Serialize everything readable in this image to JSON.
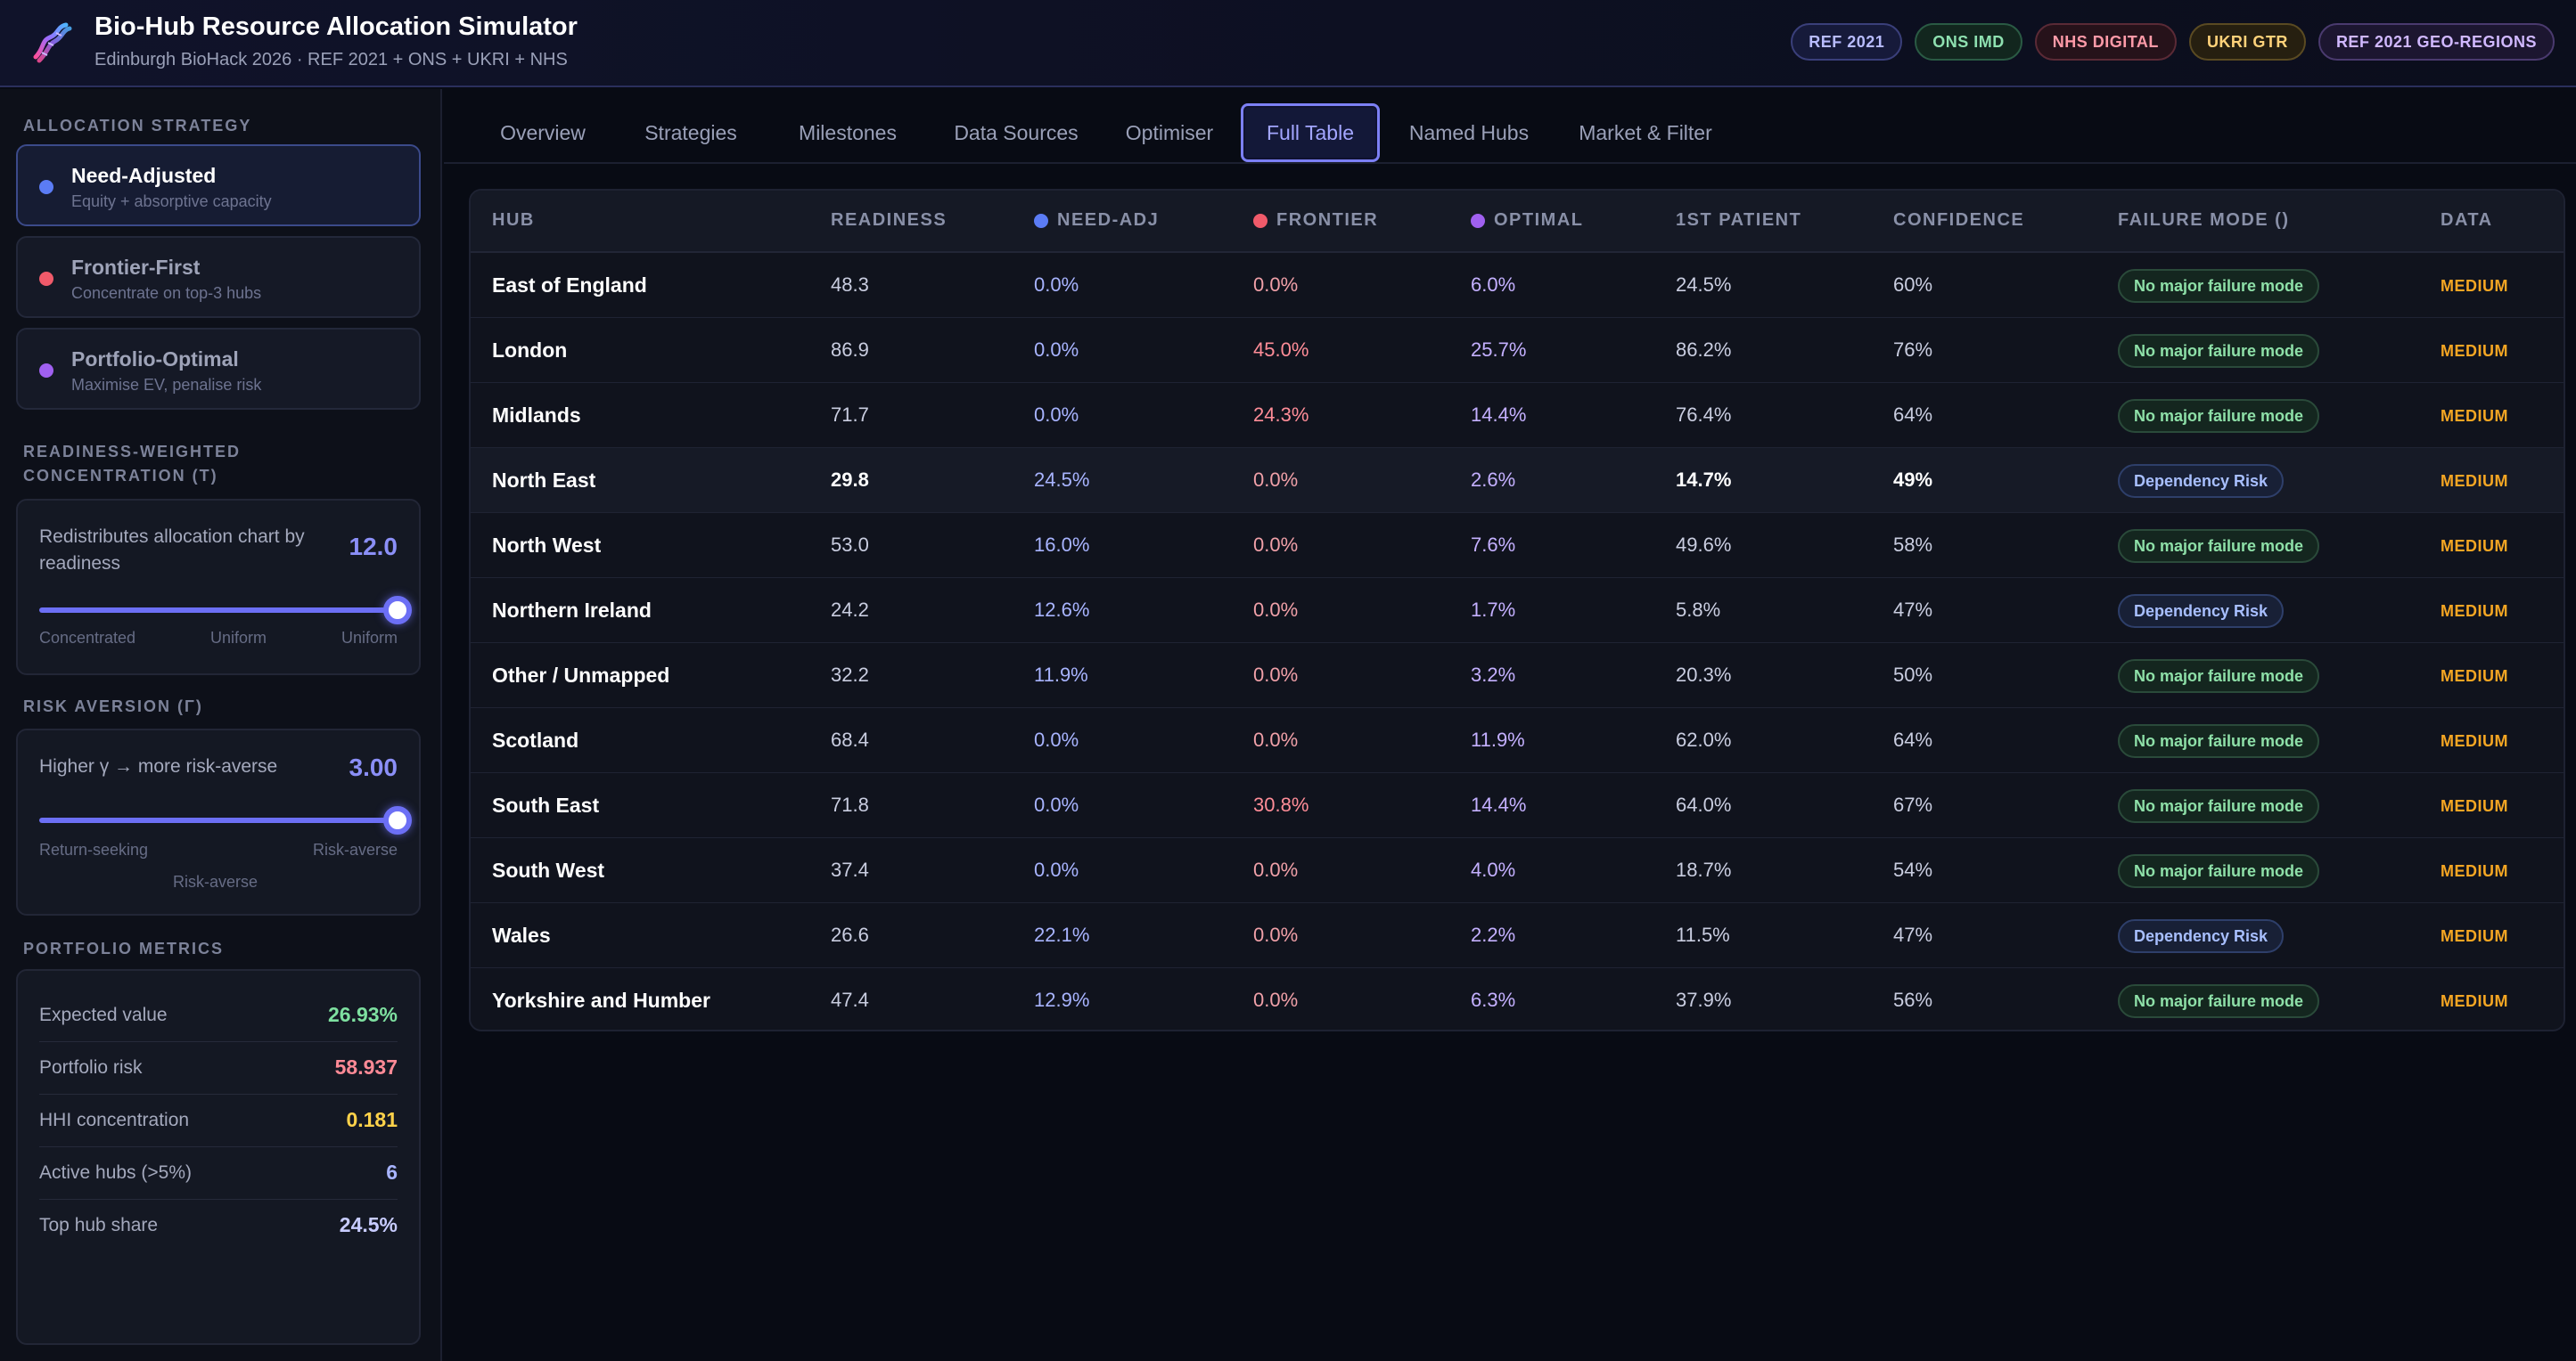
{
  "app": {
    "title": "Bio-Hub Resource Allocation Simulator",
    "subtitle": "Edinburgh BioHack 2026  ·  REF 2021 + ONS + UKRI + NHS",
    "logo_icon": "dna-helix-icon"
  },
  "badges": [
    {
      "label": "REF 2021",
      "color": "#b8bcff",
      "border": "#3a3f7a",
      "bg": "#161a3a"
    },
    {
      "label": "ONS IMD",
      "color": "#8ee0b0",
      "border": "#2a5a44",
      "bg": "#12261e"
    },
    {
      "label": "NHS DIGITAL",
      "color": "#ff9aa8",
      "border": "#5a2a36",
      "bg": "#26121a"
    },
    {
      "label": "UKRI GTR",
      "color": "#ffd27a",
      "border": "#5a4a22",
      "bg": "#261f10"
    },
    {
      "label": "REF 2021 GEO-REGIONS",
      "color": "#d0b8ff",
      "border": "#4a3a6e",
      "bg": "#1c1630"
    }
  ],
  "sidebar": {
    "strategy_label": "ALLOCATION STRATEGY",
    "strategies": [
      {
        "name": "Need-Adjusted",
        "desc": "Equity + absorptive capacity",
        "color": "#5b7cf5",
        "active": true
      },
      {
        "name": "Frontier-First",
        "desc": "Concentrate on top-3 hubs",
        "color": "#f05a6a",
        "active": false
      },
      {
        "name": "Portfolio-Optimal",
        "desc": "Maximise EV, penalise risk",
        "color": "#a060f0",
        "active": false
      }
    ],
    "tau": {
      "label": "READINESS-WEIGHTED CONCENTRATION (Τ)",
      "description": "Redistributes allocation chart by readiness",
      "value": "12.0",
      "level": 1.0,
      "ticks": [
        "Concentrated",
        "Uniform",
        "Uniform"
      ]
    },
    "gamma": {
      "label": "RISK AVERSION (Γ)",
      "description": "Higher γ → more risk-averse",
      "value": "3.00",
      "level": 1.0,
      "ticks": [
        "Return-seeking",
        "Risk-averse",
        "Risk-averse"
      ]
    },
    "metrics_label": "PORTFOLIO METRICS",
    "metrics": [
      {
        "label": "Expected value",
        "value": "26.93%",
        "color": "#7ee0a0"
      },
      {
        "label": "Portfolio risk",
        "value": "58.937",
        "color": "#ff8a96"
      },
      {
        "label": "HHI concentration",
        "value": "0.181",
        "color": "#ffd24a"
      },
      {
        "label": "Active hubs (>5%)",
        "value": "6",
        "color": "#a8b4ff"
      },
      {
        "label": "Top hub share",
        "value": "24.5%",
        "color": "#c8ccff"
      }
    ]
  },
  "tabs": [
    {
      "label": "Overview",
      "active": false
    },
    {
      "label": "Strategies",
      "active": false
    },
    {
      "label": "Milestones",
      "active": false
    },
    {
      "label": "Data Sources",
      "active": false
    },
    {
      "label": "Optimiser",
      "active": false
    },
    {
      "label": "Full Table",
      "active": true
    },
    {
      "label": "Named Hubs",
      "active": false
    },
    {
      "label": "Market & Filter",
      "active": false
    }
  ],
  "table": {
    "columns": {
      "hub": "HUB",
      "readiness": "READINESS",
      "need": "NEED-ADJ",
      "frontier": "FRONTIER",
      "optimal": "OPTIMAL",
      "first_patient": "1ST PATIENT",
      "confidence": "CONFIDENCE",
      "failure": "FAILURE MODE ()",
      "data": "DATA"
    },
    "column_colors": {
      "need": "#5b7cf5",
      "frontier": "#f05a6a",
      "optimal": "#a060f0"
    },
    "rows": [
      {
        "hub": "East of England",
        "readiness": "48.3",
        "need": "0.0%",
        "frontier": "0.0%",
        "optimal": "6.0%",
        "first_patient": "24.5%",
        "confidence": "60%",
        "failure": "No major failure mode",
        "failure_type": "ok",
        "data": "MEDIUM"
      },
      {
        "hub": "London",
        "readiness": "86.9",
        "need": "0.0%",
        "frontier": "45.0%",
        "optimal": "25.7%",
        "first_patient": "86.2%",
        "confidence": "76%",
        "failure": "No major failure mode",
        "failure_type": "ok",
        "data": "MEDIUM"
      },
      {
        "hub": "Midlands",
        "readiness": "71.7",
        "need": "0.0%",
        "frontier": "24.3%",
        "optimal": "14.4%",
        "first_patient": "76.4%",
        "confidence": "64%",
        "failure": "No major failure mode",
        "failure_type": "ok",
        "data": "MEDIUM"
      },
      {
        "hub": "North East",
        "readiness": "29.8",
        "need": "24.5%",
        "frontier": "0.0%",
        "optimal": "2.6%",
        "first_patient": "14.7%",
        "confidence": "49%",
        "failure": "Dependency Risk",
        "failure_type": "risk",
        "data": "MEDIUM",
        "highlight": true
      },
      {
        "hub": "North West",
        "readiness": "53.0",
        "need": "16.0%",
        "frontier": "0.0%",
        "optimal": "7.6%",
        "first_patient": "49.6%",
        "confidence": "58%",
        "failure": "No major failure mode",
        "failure_type": "ok",
        "data": "MEDIUM"
      },
      {
        "hub": "Northern Ireland",
        "readiness": "24.2",
        "need": "12.6%",
        "frontier": "0.0%",
        "optimal": "1.7%",
        "first_patient": "5.8%",
        "confidence": "47%",
        "failure": "Dependency Risk",
        "failure_type": "risk",
        "data": "MEDIUM"
      },
      {
        "hub": "Other / Unmapped",
        "readiness": "32.2",
        "need": "11.9%",
        "frontier": "0.0%",
        "optimal": "3.2%",
        "first_patient": "20.3%",
        "confidence": "50%",
        "failure": "No major failure mode",
        "failure_type": "ok",
        "data": "MEDIUM"
      },
      {
        "hub": "Scotland",
        "readiness": "68.4",
        "need": "0.0%",
        "frontier": "0.0%",
        "optimal": "11.9%",
        "first_patient": "62.0%",
        "confidence": "64%",
        "failure": "No major failure mode",
        "failure_type": "ok",
        "data": "MEDIUM"
      },
      {
        "hub": "South East",
        "readiness": "71.8",
        "need": "0.0%",
        "frontier": "30.8%",
        "optimal": "14.4%",
        "first_patient": "64.0%",
        "confidence": "67%",
        "failure": "No major failure mode",
        "failure_type": "ok",
        "data": "MEDIUM"
      },
      {
        "hub": "South West",
        "readiness": "37.4",
        "need": "0.0%",
        "frontier": "0.0%",
        "optimal": "4.0%",
        "first_patient": "18.7%",
        "confidence": "54%",
        "failure": "No major failure mode",
        "failure_type": "ok",
        "data": "MEDIUM"
      },
      {
        "hub": "Wales",
        "readiness": "26.6",
        "need": "22.1%",
        "frontier": "0.0%",
        "optimal": "2.2%",
        "first_patient": "11.5%",
        "confidence": "47%",
        "failure": "Dependency Risk",
        "failure_type": "risk",
        "data": "MEDIUM"
      },
      {
        "hub": "Yorkshire and Humber",
        "readiness": "47.4",
        "need": "12.9%",
        "frontier": "0.0%",
        "optimal": "6.3%",
        "first_patient": "37.9%",
        "confidence": "56%",
        "failure": "No major failure mode",
        "failure_type": "ok",
        "data": "MEDIUM"
      }
    ]
  }
}
